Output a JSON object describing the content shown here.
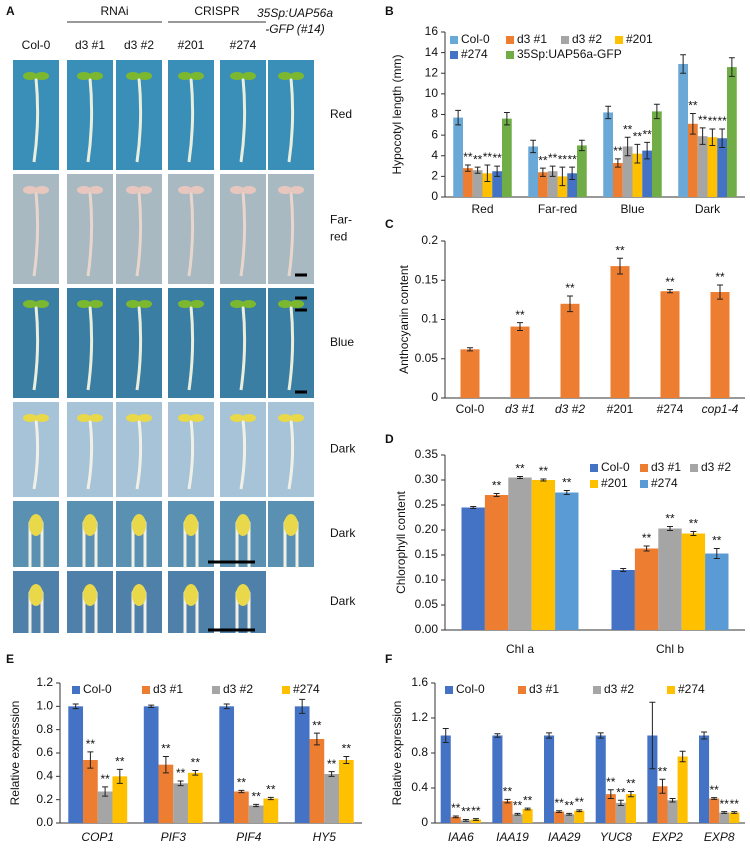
{
  "panel_a": {
    "label": "A",
    "groups": [
      "RNAi",
      "CRISPR"
    ],
    "columns": [
      "Col-0",
      "d3 #1",
      "d3 #2",
      "#201",
      "#274"
    ],
    "gfp_column": [
      "35Sp:UAP56a",
      "-GFP (#14)"
    ],
    "rows": [
      [
        "Red"
      ],
      [
        "Far-",
        "red"
      ],
      [
        "Blue"
      ],
      [
        "Dark"
      ],
      [
        "Dark"
      ],
      [
        "Dark"
      ]
    ]
  },
  "chart_data": [
    {
      "type": "bar",
      "panel_label": "B",
      "ylabel": "Hypocotyl length (mm)",
      "categories": [
        "Red",
        "Far-red",
        "Blue",
        "Dark"
      ],
      "ylim": [
        0,
        16
      ],
      "yticks": [
        0,
        2,
        4,
        6,
        8,
        10,
        12,
        14,
        16
      ],
      "legend": "upper left",
      "series": [
        {
          "name": "Col-0",
          "color": "#6aa8d8",
          "values": [
            7.7,
            4.9,
            8.2,
            12.9
          ],
          "errors": [
            0.7,
            0.6,
            0.6,
            0.9
          ]
        },
        {
          "name": "d3 #1",
          "color": "#ed7d31",
          "values": [
            2.8,
            2.4,
            3.3,
            7.1
          ],
          "errors": [
            0.3,
            0.4,
            0.4,
            1.0
          ],
          "annotations": [
            "**",
            "**",
            "**",
            "**"
          ]
        },
        {
          "name": "d3 #2",
          "color": "#a5a5a5",
          "values": [
            2.6,
            2.5,
            4.9,
            5.9
          ],
          "errors": [
            0.3,
            0.5,
            0.9,
            0.8
          ],
          "annotations": [
            "**",
            "**",
            "**",
            "**"
          ]
        },
        {
          "name": "#201",
          "color": "#ffc000",
          "values": [
            2.3,
            2.0,
            4.2,
            5.8
          ],
          "errors": [
            0.8,
            0.9,
            0.9,
            0.8
          ],
          "annotations": [
            "**",
            "**",
            "**",
            "**"
          ]
        },
        {
          "name": "#274",
          "color": "#4472c4",
          "values": [
            2.5,
            2.3,
            4.5,
            5.7
          ],
          "errors": [
            0.5,
            0.6,
            0.8,
            0.9
          ],
          "annotations": [
            "**",
            "**",
            "**",
            "**"
          ]
        },
        {
          "name": "35Sp:UAP56a-GFP",
          "color": "#70ad47",
          "values": [
            7.6,
            5.0,
            8.3,
            12.6
          ],
          "errors": [
            0.6,
            0.5,
            0.7,
            0.9
          ]
        }
      ]
    },
    {
      "type": "bar",
      "panel_label": "C",
      "ylabel": "Anthocyanin content",
      "categories": [
        "Col-0",
        "d3 #1",
        "d3 #2",
        "#201",
        "#274",
        "cop1-4"
      ],
      "ylim": [
        0,
        0.2
      ],
      "yticks": [
        0,
        0.05,
        0.1,
        0.15,
        0.2
      ],
      "color": "#ed7d31",
      "values": [
        0.062,
        0.091,
        0.12,
        0.168,
        0.136,
        0.135
      ],
      "errors": [
        0.002,
        0.005,
        0.01,
        0.01,
        0.002,
        0.009
      ],
      "annotations": [
        null,
        "**",
        "**",
        "**",
        "**",
        "**"
      ]
    },
    {
      "type": "bar",
      "panel_label": "D",
      "ylabel": "Chlorophyll content",
      "categories": [
        "Chl a",
        "Chl b"
      ],
      "ylim": [
        0,
        0.35
      ],
      "yticks": [
        {
          "value": 0,
          "label": "0.00"
        },
        0.05,
        {
          "value": 0.1,
          "label": "0.10"
        },
        0.15,
        {
          "value": 0.2,
          "label": "0.20"
        },
        0.25,
        {
          "value": 0.3,
          "label": "0.30"
        },
        0.35
      ],
      "legend": "upper right",
      "series": [
        {
          "name": "Col-0",
          "color": "#4472c4",
          "values": [
            0.245,
            0.12
          ],
          "errors": [
            0.002,
            0.003
          ]
        },
        {
          "name": "d3 #1",
          "color": "#ed7d31",
          "values": [
            0.27,
            0.163
          ],
          "errors": [
            0.003,
            0.005
          ],
          "annotations": [
            "**",
            "**"
          ]
        },
        {
          "name": "d3 #2",
          "color": "#a5a5a5",
          "values": [
            0.305,
            0.203
          ],
          "errors": [
            0.002,
            0.004
          ],
          "annotations": [
            "**",
            "**"
          ]
        },
        {
          "name": "#201",
          "color": "#ffc000",
          "values": [
            0.3,
            0.193
          ],
          "errors": [
            0.002,
            0.004
          ],
          "annotations": [
            "**",
            "**"
          ]
        },
        {
          "name": "#274",
          "color": "#5b9bd5",
          "values": [
            0.275,
            0.153
          ],
          "errors": [
            0.004,
            0.01
          ],
          "annotations": [
            "**",
            "**"
          ]
        }
      ]
    },
    {
      "type": "bar",
      "panel_label": "E",
      "ylabel": "Relative expression",
      "categories": [
        "COP1",
        "PIF3",
        "PIF4",
        "HY5"
      ],
      "ylim": [
        0,
        1.2
      ],
      "yticks": [
        {
          "value": 0,
          "label": "0.0"
        },
        0.2,
        0.4,
        0.6,
        0.8,
        {
          "value": 1,
          "label": "1.0"
        },
        1.2
      ],
      "legend": "top",
      "series": [
        {
          "name": "Col-0",
          "color": "#4472c4",
          "values": [
            1.0,
            1.0,
            1.0,
            1.0
          ],
          "errors": [
            0.02,
            0.01,
            0.02,
            0.06
          ]
        },
        {
          "name": "d3 #1",
          "color": "#ed7d31",
          "values": [
            0.54,
            0.5,
            0.27,
            0.72
          ],
          "errors": [
            0.07,
            0.07,
            0.01,
            0.05
          ],
          "annotations": [
            "**",
            "**",
            "**",
            "**"
          ]
        },
        {
          "name": "d3 #2",
          "color": "#a5a5a5",
          "values": [
            0.27,
            0.34,
            0.15,
            0.42
          ],
          "errors": [
            0.04,
            0.02,
            0.01,
            0.02
          ],
          "annotations": [
            "**",
            "**",
            "**",
            "**"
          ]
        },
        {
          "name": "#274",
          "color": "#ffc000",
          "values": [
            0.4,
            0.43,
            0.21,
            0.54
          ],
          "errors": [
            0.06,
            0.02,
            0.01,
            0.03
          ],
          "annotations": [
            "**",
            "**",
            "**",
            "**"
          ]
        }
      ]
    },
    {
      "type": "bar",
      "panel_label": "F",
      "ylabel": "Relative expression",
      "categories": [
        "IAA6",
        "IAA19",
        "IAA29",
        "YUC8",
        "EXP2",
        "EXP8"
      ],
      "ylim": [
        0,
        1.6
      ],
      "yticks": [
        0,
        0.4,
        0.8,
        1.2,
        1.6
      ],
      "legend": "top",
      "series": [
        {
          "name": "Col-0",
          "color": "#4472c4",
          "values": [
            1.0,
            1.0,
            1.0,
            1.0,
            1.0,
            1.0
          ],
          "errors": [
            0.08,
            0.02,
            0.03,
            0.03,
            0.38,
            0.04
          ]
        },
        {
          "name": "d3 #1",
          "color": "#ed7d31",
          "values": [
            0.07,
            0.25,
            0.13,
            0.33,
            0.42,
            0.28
          ],
          "errors": [
            0.01,
            0.02,
            0.01,
            0.05,
            0.08,
            0.01
          ],
          "annotations": [
            "**",
            "**",
            "**",
            "**",
            "**",
            "**"
          ]
        },
        {
          "name": "d3 #2",
          "color": "#a5a5a5",
          "values": [
            0.03,
            0.1,
            0.1,
            0.23,
            0.26,
            0.12
          ],
          "errors": [
            0.01,
            0.01,
            0.01,
            0.03,
            0.02,
            0.01
          ],
          "annotations": [
            "**",
            "**",
            "**",
            "**",
            null,
            "**"
          ]
        },
        {
          "name": "#274",
          "color": "#ffc000",
          "values": [
            0.04,
            0.16,
            0.14,
            0.33,
            0.76,
            0.12
          ],
          "errors": [
            0.01,
            0.01,
            0.01,
            0.03,
            0.06,
            0.01
          ],
          "annotations": [
            "**",
            "**",
            "**",
            "**",
            null,
            "**"
          ]
        }
      ]
    }
  ]
}
